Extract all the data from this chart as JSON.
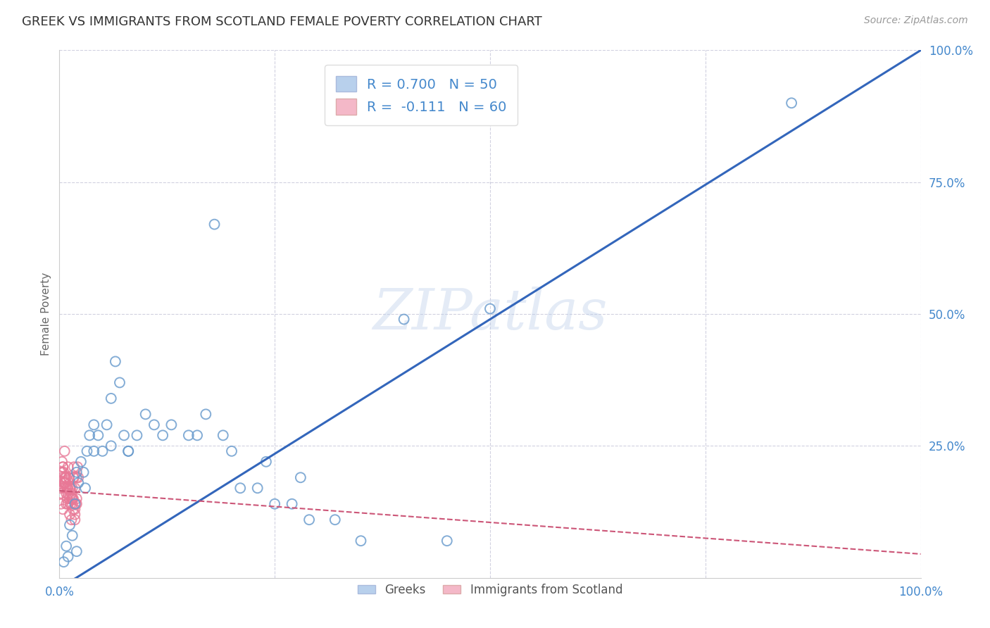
{
  "title": "GREEK VS IMMIGRANTS FROM SCOTLAND FEMALE POVERTY CORRELATION CHART",
  "source": "Source: ZipAtlas.com",
  "ylabel": "Female Poverty",
  "watermark": "ZIPatlas",
  "xlim": [
    0,
    1
  ],
  "ylim": [
    0,
    1
  ],
  "series1_color": "#6699cc",
  "series2_color": "#e87896",
  "line1_color": "#3366bb",
  "line2_color": "#cc5577",
  "background_color": "#ffffff",
  "grid_color": "#ccccdd",
  "axis_color": "#4488cc",
  "line1_slope": 1.02,
  "line1_intercept": -0.02,
  "line2_slope": -0.12,
  "line2_intercept": 0.165,
  "series1_x": [
    0.005,
    0.008,
    0.01,
    0.012,
    0.015,
    0.018,
    0.02,
    0.022,
    0.025,
    0.028,
    0.03,
    0.032,
    0.035,
    0.04,
    0.045,
    0.05,
    0.055,
    0.06,
    0.065,
    0.07,
    0.075,
    0.08,
    0.09,
    0.1,
    0.11,
    0.13,
    0.15,
    0.17,
    0.19,
    0.21,
    0.23,
    0.25,
    0.27,
    0.29,
    0.32,
    0.35,
    0.4,
    0.45,
    0.5,
    0.02,
    0.04,
    0.06,
    0.08,
    0.12,
    0.16,
    0.2,
    0.24,
    0.28,
    0.85,
    0.18
  ],
  "series1_y": [
    0.03,
    0.06,
    0.04,
    0.1,
    0.08,
    0.14,
    0.05,
    0.18,
    0.22,
    0.2,
    0.17,
    0.24,
    0.27,
    0.24,
    0.27,
    0.24,
    0.29,
    0.34,
    0.41,
    0.37,
    0.27,
    0.24,
    0.27,
    0.31,
    0.29,
    0.29,
    0.27,
    0.31,
    0.27,
    0.17,
    0.17,
    0.14,
    0.14,
    0.11,
    0.11,
    0.07,
    0.49,
    0.07,
    0.51,
    0.2,
    0.29,
    0.25,
    0.24,
    0.27,
    0.27,
    0.24,
    0.22,
    0.19,
    0.9,
    0.67
  ],
  "series2_x": [
    0.001,
    0.002,
    0.003,
    0.004,
    0.005,
    0.006,
    0.007,
    0.008,
    0.009,
    0.01,
    0.011,
    0.012,
    0.013,
    0.014,
    0.015,
    0.016,
    0.017,
    0.018,
    0.019,
    0.02,
    0.021,
    0.022,
    0.003,
    0.005,
    0.007,
    0.009,
    0.011,
    0.013,
    0.015,
    0.017,
    0.002,
    0.004,
    0.006,
    0.008,
    0.01,
    0.012,
    0.014,
    0.016,
    0.018,
    0.02,
    0.003,
    0.006,
    0.009,
    0.012,
    0.015,
    0.018,
    0.005,
    0.01,
    0.015,
    0.02,
    0.004,
    0.008,
    0.012,
    0.016,
    0.002,
    0.006,
    0.01,
    0.014,
    0.018,
    0.007
  ],
  "series2_y": [
    0.17,
    0.14,
    0.19,
    0.21,
    0.17,
    0.24,
    0.19,
    0.14,
    0.17,
    0.21,
    0.19,
    0.17,
    0.14,
    0.11,
    0.17,
    0.19,
    0.21,
    0.17,
    0.14,
    0.19,
    0.21,
    0.19,
    0.22,
    0.2,
    0.18,
    0.15,
    0.19,
    0.17,
    0.15,
    0.19,
    0.16,
    0.13,
    0.18,
    0.16,
    0.14,
    0.12,
    0.15,
    0.13,
    0.11,
    0.15,
    0.2,
    0.19,
    0.17,
    0.15,
    0.14,
    0.12,
    0.18,
    0.16,
    0.15,
    0.14,
    0.21,
    0.19,
    0.17,
    0.15,
    0.2,
    0.18,
    0.17,
    0.16,
    0.13,
    0.17
  ]
}
